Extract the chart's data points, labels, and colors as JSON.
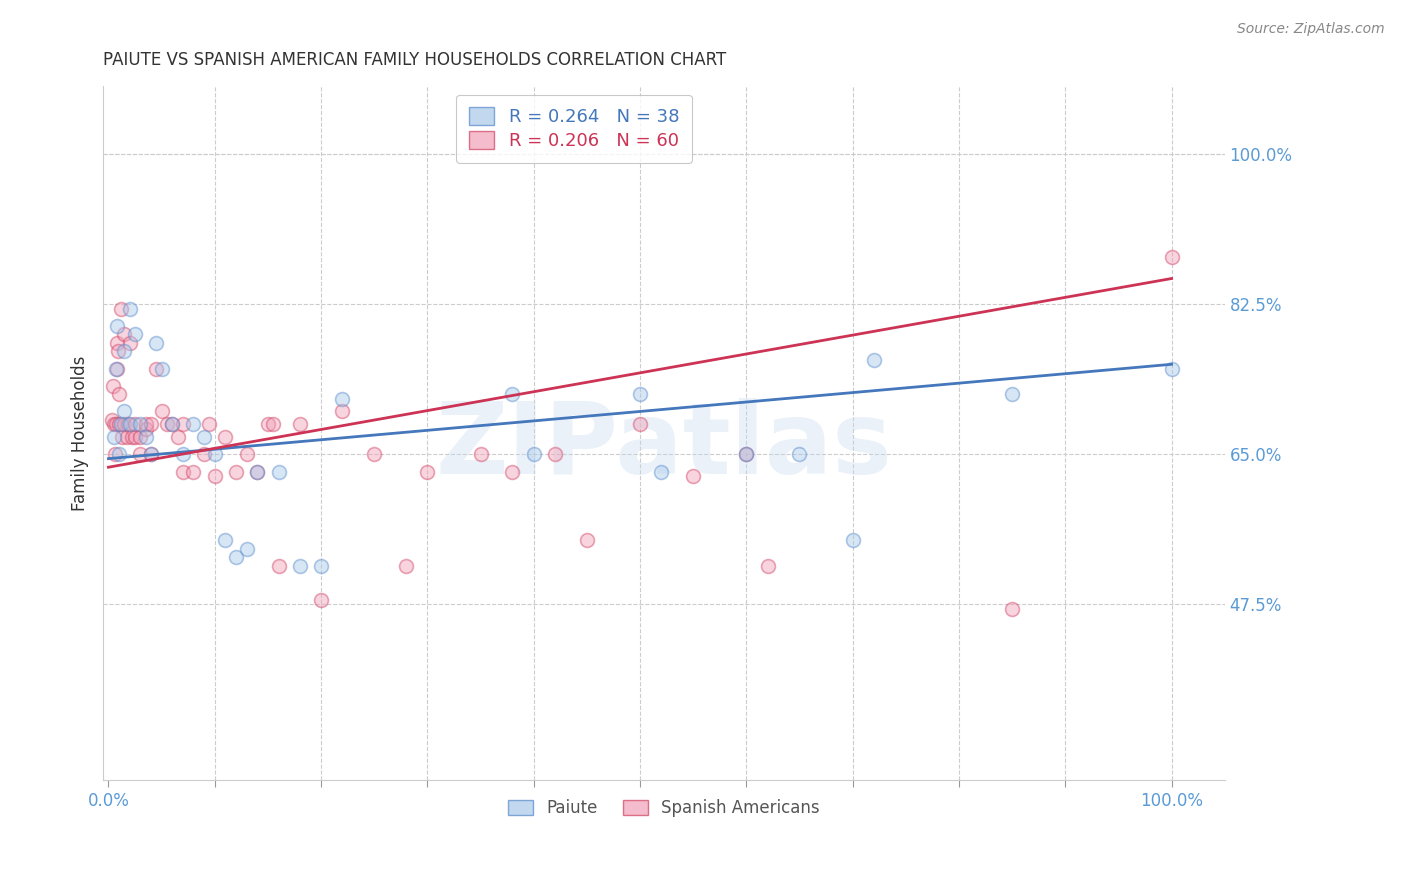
{
  "title": "PAIUTE VS SPANISH AMERICAN FAMILY HOUSEHOLDS CORRELATION CHART",
  "source": "Source: ZipAtlas.com",
  "ylabel": "Family Households",
  "ytick_labels": [
    "47.5%",
    "65.0%",
    "82.5%",
    "100.0%"
  ],
  "ytick_values": [
    0.475,
    0.65,
    0.825,
    1.0
  ],
  "watermark": "ZIPatlas",
  "paiute_label": "Paiute",
  "spanish_label": "Spanish Americans",
  "blue_color": "#a8c8e8",
  "pink_color": "#f0a0b8",
  "blue_edge_color": "#5588cc",
  "pink_edge_color": "#d04060",
  "blue_line_color": "#4477bb",
  "pink_line_color": "#cc3355",
  "blue_r": 0.264,
  "blue_n": 38,
  "pink_r": 0.206,
  "pink_n": 60,
  "blue_points_x": [
    0.005,
    0.007,
    0.008,
    0.01,
    0.012,
    0.015,
    0.015,
    0.02,
    0.02,
    0.025,
    0.03,
    0.035,
    0.04,
    0.045,
    0.05,
    0.06,
    0.07,
    0.08,
    0.09,
    0.1,
    0.11,
    0.12,
    0.13,
    0.14,
    0.16,
    0.18,
    0.2,
    0.22,
    0.38,
    0.4,
    0.5,
    0.52,
    0.6,
    0.65,
    0.7,
    0.72,
    0.85,
    1.0
  ],
  "blue_points_y": [
    0.67,
    0.75,
    0.8,
    0.65,
    0.685,
    0.7,
    0.77,
    0.685,
    0.82,
    0.79,
    0.685,
    0.67,
    0.65,
    0.78,
    0.75,
    0.685,
    0.65,
    0.685,
    0.67,
    0.65,
    0.55,
    0.53,
    0.54,
    0.63,
    0.63,
    0.52,
    0.52,
    0.715,
    0.72,
    0.65,
    0.72,
    0.63,
    0.65,
    0.65,
    0.55,
    0.76,
    0.72,
    0.75
  ],
  "pink_points_x": [
    0.003,
    0.004,
    0.005,
    0.006,
    0.007,
    0.008,
    0.008,
    0.009,
    0.01,
    0.01,
    0.012,
    0.013,
    0.015,
    0.015,
    0.017,
    0.018,
    0.02,
    0.022,
    0.025,
    0.025,
    0.03,
    0.03,
    0.035,
    0.035,
    0.04,
    0.04,
    0.045,
    0.05,
    0.055,
    0.06,
    0.065,
    0.07,
    0.07,
    0.08,
    0.09,
    0.095,
    0.1,
    0.11,
    0.12,
    0.13,
    0.14,
    0.15,
    0.155,
    0.16,
    0.18,
    0.2,
    0.22,
    0.25,
    0.28,
    0.3,
    0.35,
    0.38,
    0.42,
    0.45,
    0.5,
    0.55,
    0.6,
    0.62,
    0.85,
    1.0
  ],
  "pink_points_y": [
    0.69,
    0.73,
    0.685,
    0.65,
    0.685,
    0.75,
    0.78,
    0.77,
    0.72,
    0.685,
    0.82,
    0.67,
    0.79,
    0.685,
    0.67,
    0.685,
    0.78,
    0.67,
    0.67,
    0.685,
    0.65,
    0.67,
    0.68,
    0.685,
    0.65,
    0.685,
    0.75,
    0.7,
    0.685,
    0.685,
    0.67,
    0.63,
    0.685,
    0.63,
    0.65,
    0.685,
    0.625,
    0.67,
    0.63,
    0.65,
    0.63,
    0.685,
    0.685,
    0.52,
    0.685,
    0.48,
    0.7,
    0.65,
    0.52,
    0.63,
    0.65,
    0.63,
    0.65,
    0.55,
    0.685,
    0.625,
    0.65,
    0.52,
    0.47,
    0.88
  ],
  "blue_line_x0": 0.0,
  "blue_line_x1": 1.0,
  "blue_line_y0": 0.645,
  "blue_line_y1": 0.755,
  "pink_line_x0": 0.0,
  "pink_line_x1": 1.0,
  "pink_line_y0": 0.635,
  "pink_line_y1": 0.855,
  "ymin": 0.27,
  "ymax": 1.08,
  "xmin": -0.005,
  "xmax": 1.05,
  "background_color": "#ffffff",
  "grid_color": "#cccccc",
  "title_color": "#333333",
  "label_color": "#5b9bd5",
  "source_color": "#888888",
  "marker_size": 100,
  "marker_alpha": 0.45,
  "marker_linewidth": 1.2
}
